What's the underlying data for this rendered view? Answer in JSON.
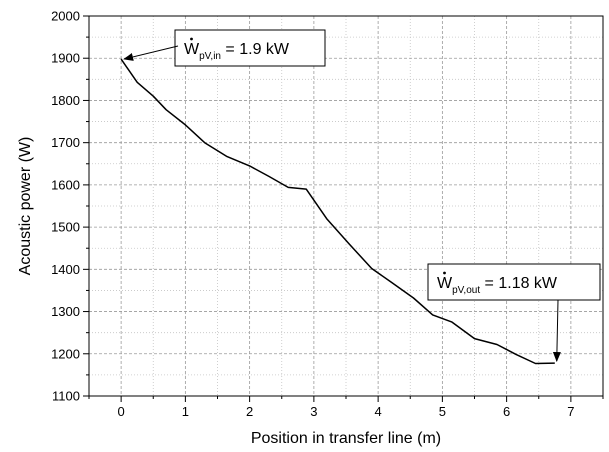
{
  "chart_data": {
    "type": "line",
    "title": "",
    "xlabel": "Position in transfer line (m)",
    "ylabel": "Acoustic power (W)",
    "xlim": [
      -0.5,
      7.5
    ],
    "ylim": [
      1100,
      2000
    ],
    "x_ticks": [
      0,
      1,
      2,
      3,
      4,
      5,
      6,
      7
    ],
    "y_ticks": [
      1100,
      1200,
      1300,
      1400,
      1500,
      1600,
      1700,
      1800,
      1900,
      2000
    ],
    "x_tick_labels": [
      "0",
      "1",
      "2",
      "3",
      "4",
      "5",
      "6",
      "7"
    ],
    "y_tick_labels": [
      "1100",
      "1200",
      "1300",
      "1400",
      "1500",
      "1600",
      "1700",
      "1800",
      "1900",
      "2000"
    ],
    "grid": true,
    "series": [
      {
        "color": "#000000",
        "x": [
          0,
          0.25,
          0.5,
          0.7,
          1.0,
          1.3,
          1.65,
          2.0,
          2.3,
          2.6,
          2.88,
          3.2,
          3.55,
          3.9,
          4.2,
          4.55,
          4.85,
          5.15,
          5.5,
          5.85,
          6.15,
          6.45,
          6.75
        ],
        "y": [
          1898,
          1843,
          1810,
          1778,
          1742,
          1700,
          1667,
          1645,
          1620,
          1594,
          1590,
          1520,
          1460,
          1402,
          1370,
          1332,
          1292,
          1275,
          1236,
          1222,
          1198,
          1177,
          1178
        ]
      }
    ],
    "annotations": [
      {
        "symbol": "W",
        "subscript": "pV,in",
        "text": " = 1.9 kW",
        "target": [
          0,
          1898
        ]
      },
      {
        "symbol": "W",
        "subscript": "pV,out",
        "text": " = 1.18 kW",
        "target": [
          6.78,
          1178
        ]
      }
    ]
  }
}
